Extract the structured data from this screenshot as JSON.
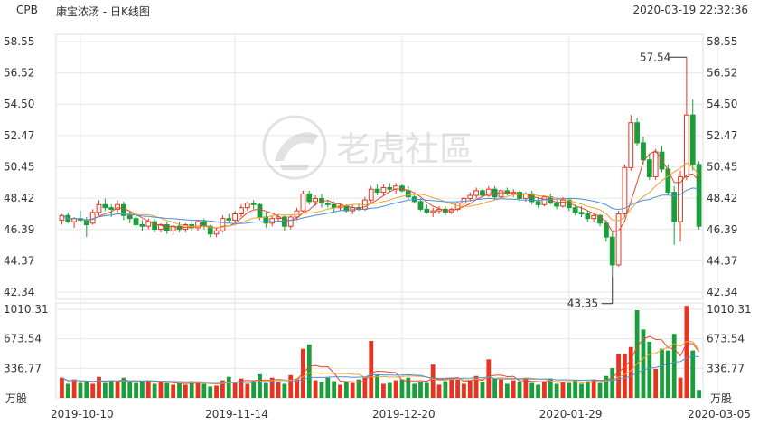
{
  "header": {
    "ticker": "CPB",
    "name": "康宝浓汤 - 日K线图",
    "datetime": "2020-03-19 22:32:36"
  },
  "watermark": {
    "text": "老虎社區",
    "icon": "tiger-logo-icon"
  },
  "colors": {
    "up": "#e8341f",
    "down": "#1a9e3b",
    "ma5": "#e0492e",
    "ma10": "#f0a030",
    "ma20": "#4a90d9",
    "grid": "#e6e6e6"
  },
  "chart_data": {
    "type": "candlestick",
    "price_axis": {
      "ticks": [
        "58.55",
        "56.52",
        "54.50",
        "52.47",
        "50.45",
        "48.42",
        "46.39",
        "44.37",
        "42.34"
      ],
      "ylim": [
        42.34,
        58.55
      ]
    },
    "volume_axis": {
      "ticks": [
        "1010.31",
        "673.54",
        "336.77"
      ],
      "unit": "万股"
    },
    "date_labels": [
      "2019-10-10",
      "2019-11-14",
      "2019-12-20",
      "2020-01-29",
      "2020-03-05"
    ],
    "annotations": {
      "high": "57.54",
      "low": "43.35"
    },
    "candles": [
      [
        47.0,
        47.4,
        46.7,
        47.3
      ],
      [
        47.3,
        47.5,
        46.8,
        46.9
      ],
      [
        46.9,
        47.2,
        46.5,
        47.1
      ],
      [
        47.1,
        47.6,
        46.9,
        47.0
      ],
      [
        47.0,
        47.2,
        45.9,
        46.7
      ],
      [
        46.8,
        47.7,
        46.7,
        47.5
      ],
      [
        47.5,
        48.3,
        47.3,
        48.0
      ],
      [
        48.0,
        48.4,
        47.6,
        47.8
      ],
      [
        47.8,
        48.0,
        47.2,
        47.7
      ],
      [
        47.7,
        48.3,
        47.5,
        48.0
      ],
      [
        48.0,
        48.2,
        47.0,
        47.3
      ],
      [
        47.3,
        47.6,
        46.8,
        47.1
      ],
      [
        47.1,
        47.3,
        46.4,
        46.7
      ],
      [
        46.7,
        47.0,
        46.3,
        46.6
      ],
      [
        46.6,
        47.1,
        46.4,
        46.9
      ],
      [
        46.9,
        47.1,
        46.2,
        46.4
      ],
      [
        46.4,
        46.8,
        46.2,
        46.7
      ],
      [
        46.7,
        46.9,
        46.1,
        46.3
      ],
      [
        46.3,
        46.7,
        46.0,
        46.6
      ],
      [
        46.6,
        46.9,
        46.2,
        46.4
      ],
      [
        46.4,
        46.8,
        46.2,
        46.7
      ],
      [
        46.7,
        47.0,
        46.3,
        46.5
      ],
      [
        46.5,
        47.0,
        46.3,
        46.9
      ],
      [
        46.9,
        47.1,
        46.4,
        46.6
      ],
      [
        46.6,
        46.7,
        45.9,
        46.1
      ],
      [
        46.1,
        46.5,
        45.9,
        46.3
      ],
      [
        46.3,
        47.3,
        46.2,
        47.1
      ],
      [
        47.1,
        47.4,
        46.8,
        47.0
      ],
      [
        47.0,
        47.6,
        46.9,
        47.4
      ],
      [
        47.4,
        48.0,
        47.2,
        47.8
      ],
      [
        47.8,
        48.2,
        47.6,
        48.1
      ],
      [
        48.1,
        48.3,
        47.7,
        48.0
      ],
      [
        48.0,
        48.1,
        47.0,
        47.2
      ],
      [
        47.2,
        47.5,
        46.5,
        46.8
      ],
      [
        46.8,
        47.3,
        46.6,
        47.1
      ],
      [
        47.1,
        47.4,
        46.9,
        47.2
      ],
      [
        47.2,
        47.3,
        46.3,
        46.6
      ],
      [
        46.6,
        47.3,
        46.4,
        47.2
      ],
      [
        47.2,
        47.8,
        47.0,
        47.6
      ],
      [
        47.6,
        48.9,
        47.5,
        48.7
      ],
      [
        48.7,
        48.9,
        48.0,
        48.2
      ],
      [
        48.2,
        48.6,
        47.9,
        48.4
      ],
      [
        48.4,
        48.7,
        47.8,
        48.1
      ],
      [
        48.1,
        48.3,
        47.8,
        48.0
      ],
      [
        48.0,
        48.2,
        47.5,
        47.8
      ],
      [
        47.8,
        48.1,
        47.6,
        47.9
      ],
      [
        47.9,
        48.0,
        47.5,
        47.6
      ],
      [
        47.6,
        48.0,
        47.4,
        47.8
      ],
      [
        47.8,
        48.0,
        47.6,
        47.7
      ],
      [
        47.7,
        48.5,
        47.6,
        48.3
      ],
      [
        48.3,
        49.2,
        48.1,
        49.0
      ],
      [
        49.0,
        49.3,
        48.6,
        48.8
      ],
      [
        48.8,
        49.3,
        48.6,
        49.1
      ],
      [
        49.1,
        49.4,
        48.8,
        49.0
      ],
      [
        49.0,
        49.4,
        48.7,
        49.2
      ],
      [
        49.2,
        49.3,
        48.8,
        48.9
      ],
      [
        48.9,
        49.2,
        48.3,
        48.5
      ],
      [
        48.5,
        48.8,
        48.1,
        48.2
      ],
      [
        48.2,
        48.4,
        47.6,
        47.7
      ],
      [
        47.7,
        48.0,
        47.4,
        47.5
      ],
      [
        47.5,
        47.8,
        47.2,
        47.6
      ],
      [
        47.6,
        47.9,
        47.4,
        47.7
      ],
      [
        47.7,
        47.9,
        47.3,
        47.5
      ],
      [
        47.5,
        47.8,
        47.4,
        47.7
      ],
      [
        47.7,
        48.2,
        47.6,
        48.1
      ],
      [
        48.1,
        48.5,
        47.9,
        48.4
      ],
      [
        48.4,
        48.8,
        48.2,
        48.6
      ],
      [
        48.6,
        49.1,
        48.4,
        48.9
      ],
      [
        48.9,
        49.0,
        48.5,
        48.6
      ],
      [
        48.6,
        49.2,
        48.5,
        49.0
      ],
      [
        49.0,
        49.2,
        48.3,
        48.5
      ],
      [
        48.5,
        49.0,
        48.4,
        48.9
      ],
      [
        48.9,
        49.1,
        48.6,
        48.7
      ],
      [
        48.7,
        49.0,
        48.5,
        48.8
      ],
      [
        48.8,
        48.9,
        48.2,
        48.4
      ],
      [
        48.4,
        48.8,
        48.2,
        48.7
      ],
      [
        48.7,
        48.9,
        48.0,
        48.2
      ],
      [
        48.2,
        48.5,
        47.8,
        48.0
      ],
      [
        48.0,
        48.6,
        47.9,
        48.5
      ],
      [
        48.5,
        48.7,
        48.0,
        48.1
      ],
      [
        48.1,
        48.3,
        47.7,
        47.9
      ],
      [
        47.9,
        48.5,
        47.8,
        48.3
      ],
      [
        48.3,
        48.4,
        47.6,
        47.8
      ],
      [
        47.8,
        48.0,
        47.3,
        47.5
      ],
      [
        47.5,
        47.9,
        47.2,
        47.4
      ],
      [
        47.4,
        47.6,
        46.9,
        47.1
      ],
      [
        47.1,
        47.5,
        46.9,
        47.3
      ],
      [
        47.3,
        47.4,
        46.6,
        46.8
      ],
      [
        46.8,
        47.0,
        45.6,
        45.9
      ],
      [
        45.9,
        46.2,
        43.35,
        44.1
      ],
      [
        44.1,
        47.6,
        44.0,
        47.4
      ],
      [
        47.4,
        50.6,
        47.2,
        50.4
      ],
      [
        50.4,
        53.8,
        50.2,
        53.3
      ],
      [
        53.3,
        53.6,
        51.8,
        52.0
      ],
      [
        52.0,
        52.4,
        50.6,
        50.9
      ],
      [
        50.9,
        51.3,
        49.6,
        49.8
      ],
      [
        49.8,
        51.6,
        49.6,
        51.4
      ],
      [
        51.4,
        51.8,
        50.1,
        50.3
      ],
      [
        50.3,
        50.6,
        48.6,
        48.8
      ],
      [
        48.8,
        49.2,
        45.4,
        46.9
      ],
      [
        46.9,
        50.2,
        45.6,
        49.8
      ],
      [
        49.8,
        57.54,
        49.6,
        53.8
      ],
      [
        53.8,
        54.8,
        50.2,
        50.6
      ],
      [
        50.6,
        50.8,
        46.4,
        46.6
      ]
    ],
    "volumes": [
      230,
      160,
      210,
      170,
      190,
      160,
      240,
      170,
      200,
      190,
      230,
      180,
      170,
      190,
      200,
      160,
      180,
      170,
      150,
      170,
      150,
      190,
      180,
      160,
      130,
      140,
      200,
      240,
      170,
      220,
      160,
      190,
      270,
      170,
      230,
      190,
      160,
      260,
      220,
      560,
      610,
      200,
      180,
      230,
      190,
      150,
      180,
      170,
      210,
      230,
      650,
      260,
      160,
      170,
      200,
      210,
      230,
      160,
      180,
      170,
      380,
      150,
      190,
      230,
      210,
      160,
      200,
      250,
      180,
      440,
      220,
      210,
      160,
      200,
      180,
      230,
      170,
      150,
      190,
      220,
      160,
      180,
      170,
      200,
      160,
      190,
      210,
      170,
      250,
      340,
      500,
      500,
      580,
      1000,
      780,
      640,
      330,
      560,
      540,
      730,
      230,
      1050,
      540,
      90
    ]
  }
}
